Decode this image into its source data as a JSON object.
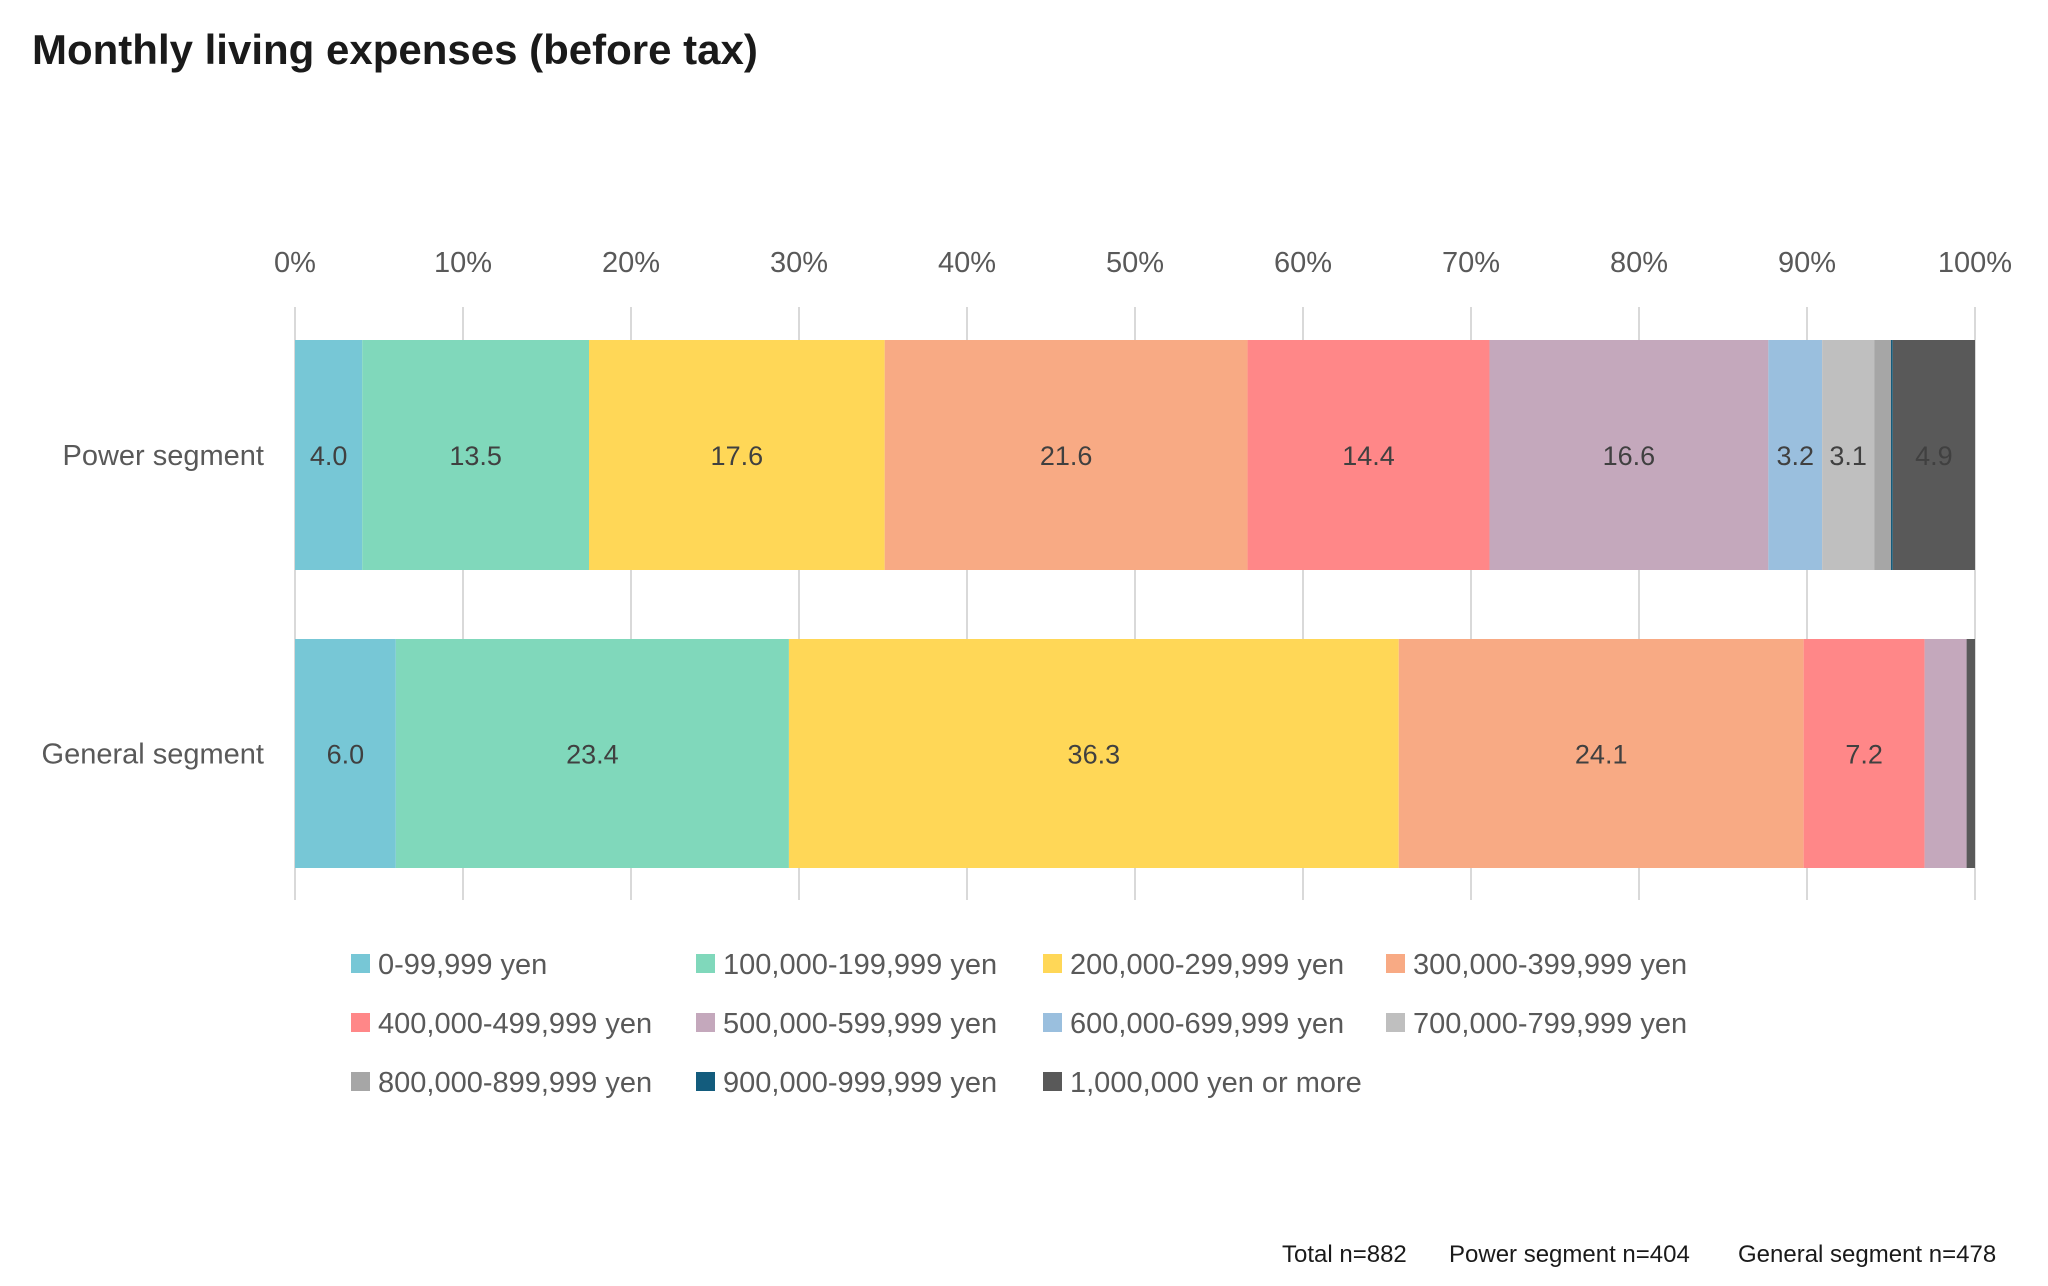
{
  "chart_data": {
    "type": "bar",
    "orientation": "horizontal",
    "stacked": "percent",
    "title": "Monthly living expenses (before tax)",
    "xlabel": "",
    "ylabel": "",
    "xlim": [
      0,
      100
    ],
    "x_ticks": [
      "0%",
      "10%",
      "20%",
      "30%",
      "40%",
      "50%",
      "60%",
      "70%",
      "80%",
      "90%",
      "100%"
    ],
    "x_axis_position": "top",
    "grid": true,
    "legend_position": "bottom",
    "categories": [
      "Power segment",
      "General segment"
    ],
    "series": [
      {
        "name": "0-99,999 yen",
        "color": "#77C7D6",
        "values": [
          4.0,
          6.0
        ],
        "labels": [
          "4.0",
          "6.0"
        ]
      },
      {
        "name": "100,000-199,999 yen",
        "color": "#80D8BB",
        "values": [
          13.5,
          23.4
        ],
        "labels": [
          "13.5",
          "23.4"
        ]
      },
      {
        "name": "200,000-299,999 yen",
        "color": "#FFD757",
        "values": [
          17.6,
          36.3
        ],
        "labels": [
          "17.6",
          "36.3"
        ]
      },
      {
        "name": "300,000-399,999 yen",
        "color": "#F8AA84",
        "values": [
          21.6,
          24.1
        ],
        "labels": [
          "21.6",
          "24.1"
        ]
      },
      {
        "name": "400,000-499,999 yen",
        "color": "#FF8788",
        "values": [
          14.4,
          7.2
        ],
        "labels": [
          "14.4",
          "7.2"
        ]
      },
      {
        "name": "500,000-599,999 yen",
        "color": "#C4A8BC",
        "values": [
          16.6,
          2.5
        ],
        "labels": [
          "16.6",
          ""
        ]
      },
      {
        "name": "600,000-699,999 yen",
        "color": "#9ABFDE",
        "values": [
          3.2,
          0.0
        ],
        "labels": [
          "3.2",
          ""
        ]
      },
      {
        "name": "700,000-799,999 yen",
        "color": "#BFBFBF",
        "values": [
          3.1,
          0.0
        ],
        "labels": [
          "3.1",
          ""
        ]
      },
      {
        "name": "800,000-899,999 yen",
        "color": "#A6A6A6",
        "values": [
          1.0,
          0.0
        ],
        "labels": [
          "",
          ""
        ]
      },
      {
        "name": "900,000-999,999 yen",
        "color": "#135C7D",
        "values": [
          0.1,
          0.0
        ],
        "labels": [
          "",
          ""
        ]
      },
      {
        "name": "1,000,000 yen or more",
        "color": "#595959",
        "values": [
          4.9,
          0.5
        ],
        "labels": [
          "4.9",
          ""
        ],
        "label_color": "#FFFFFF"
      }
    ],
    "annotations": [
      "Total n=882",
      "Power segment n=404",
      "General segment n=478"
    ]
  },
  "footer": {
    "total": "Total n=882",
    "power": "Power segment n=404",
    "general": "General segment n=478"
  }
}
